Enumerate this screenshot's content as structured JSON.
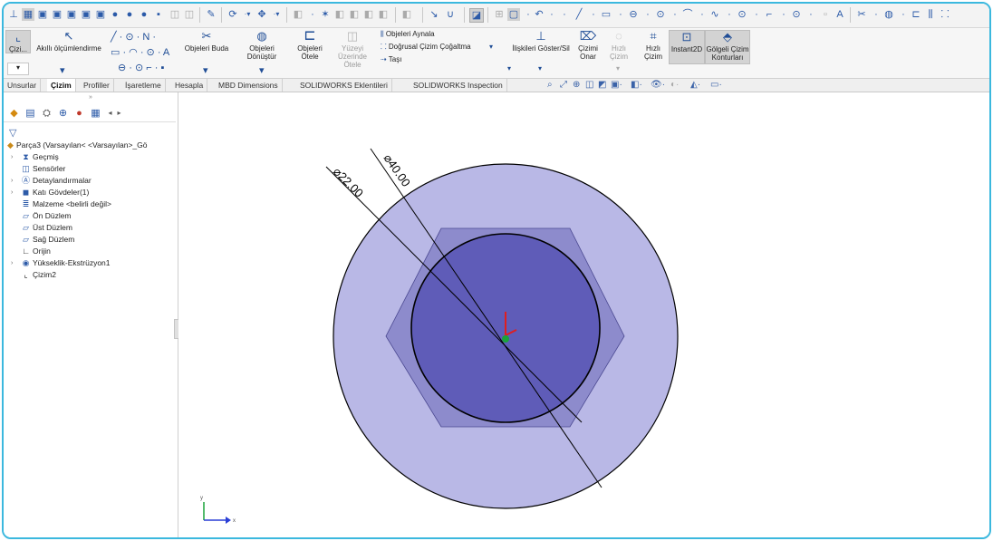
{
  "ribbon": {
    "sketch_label": "Çizi...",
    "smart_dimension_label": "Akıllı ölçümlendirme",
    "convert_entities_label": "Objeleri Buda",
    "trim_entities_label": "Objeleri Dönüştür",
    "offset_entities_label": "Objeleri Ötele",
    "surface_offset_label": "Yüzeyi Üzerinde Ötele",
    "mirror_label": "Objeleri Aynala",
    "linear_pattern_label": "Doğrusal Çizim Çoğaltma",
    "move_label": "Taşı",
    "relations_label": "İlişkileri Göster/Sil",
    "repair_label": "Çizimi Onar",
    "quick_snaps_label": "Hızlı Çizim",
    "rapid_sketch_label": "Hızlı Çizim",
    "instant2d_label": "Instant2D",
    "shaded_contours_label": "Gölgeli Çizim Konturları"
  },
  "tabs": [
    {
      "label": "Unsurlar"
    },
    {
      "label": "Çizim"
    },
    {
      "label": "Profiller"
    },
    {
      "label": "İşaretleme"
    },
    {
      "label": "Hesapla"
    },
    {
      "label": "MBD Dimensions"
    },
    {
      "label": "SOLIDWORKS Eklentileri"
    },
    {
      "label": "SOLIDWORKS Inspection"
    }
  ],
  "tree": {
    "root": "Parça3  (Varsayılan< <Varsayılan>_Gö",
    "items": [
      {
        "label": "Geçmiş",
        "icon": "history-icon"
      },
      {
        "label": "Sensörler",
        "icon": "sensor-icon"
      },
      {
        "label": "Detaylandırmalar",
        "icon": "annotations-icon"
      },
      {
        "label": "Katı Gövdeler(1)",
        "icon": "solid-bodies-icon"
      },
      {
        "label": "Malzeme <belirli değil>",
        "icon": "material-icon"
      },
      {
        "label": "Ön Düzlem",
        "icon": "plane-icon"
      },
      {
        "label": "Üst Düzlem",
        "icon": "plane-icon"
      },
      {
        "label": "Sağ Düzlem",
        "icon": "plane-icon"
      },
      {
        "label": "Orijin",
        "icon": "origin-icon"
      },
      {
        "label": "Yükseklik-Ekstrüzyon1",
        "icon": "extrude-icon"
      },
      {
        "label": "Çizim2",
        "icon": "sketch-icon"
      }
    ]
  },
  "canvas": {
    "dimension_outer": "⌀40.00",
    "dimension_inner": "⌀22.00",
    "colors": {
      "outer_disc": "#b9b8e6",
      "hexagon": "#8d8bcc",
      "inner_disc": "#5f5cb8",
      "outline": "#000000",
      "axis_red": "#e01e1e",
      "axis_blue": "#2a3fd6",
      "axis_green": "#1aa33a"
    }
  }
}
